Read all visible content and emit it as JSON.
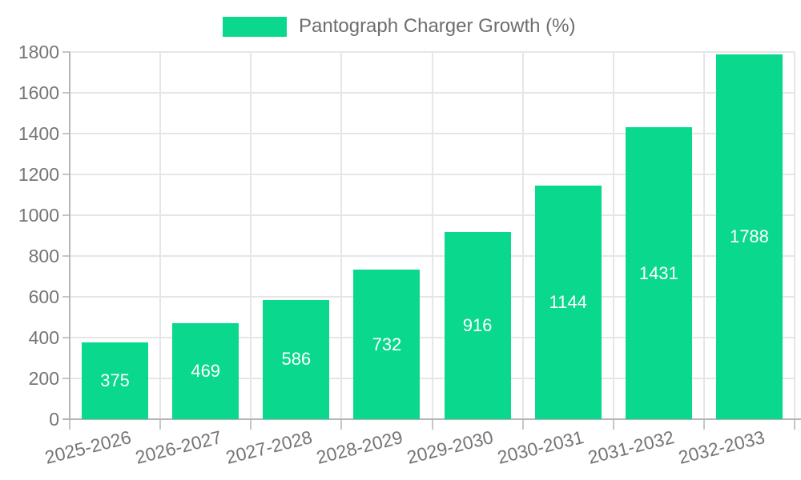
{
  "chart_data": {
    "type": "bar",
    "legend_label": "Pantograph Charger Growth (%)",
    "legend_position": "top",
    "categories": [
      "2025-2026",
      "2026-2027",
      "2027-2028",
      "2028-2029",
      "2029-2030",
      "2030-2031",
      "2031-2032",
      "2032-2033"
    ],
    "values": [
      375,
      469,
      586,
      732,
      916,
      1144,
      1431,
      1788
    ],
    "ylim": [
      0,
      1800
    ],
    "ytick_step": 200,
    "yticks": [
      0,
      200,
      400,
      600,
      800,
      1000,
      1200,
      1400,
      1600,
      1800
    ],
    "grid": true,
    "value_labels": "inside-center",
    "colors": {
      "bar": "#0ad88c",
      "value_label": "#ffffff",
      "grid": "#e6e6e6",
      "axis": "#b5b5b5",
      "tick_mark": "#c6c6c6",
      "tick_text": "#757575",
      "legend_text": "#6e6e6e",
      "background": "#ffffff"
    }
  }
}
